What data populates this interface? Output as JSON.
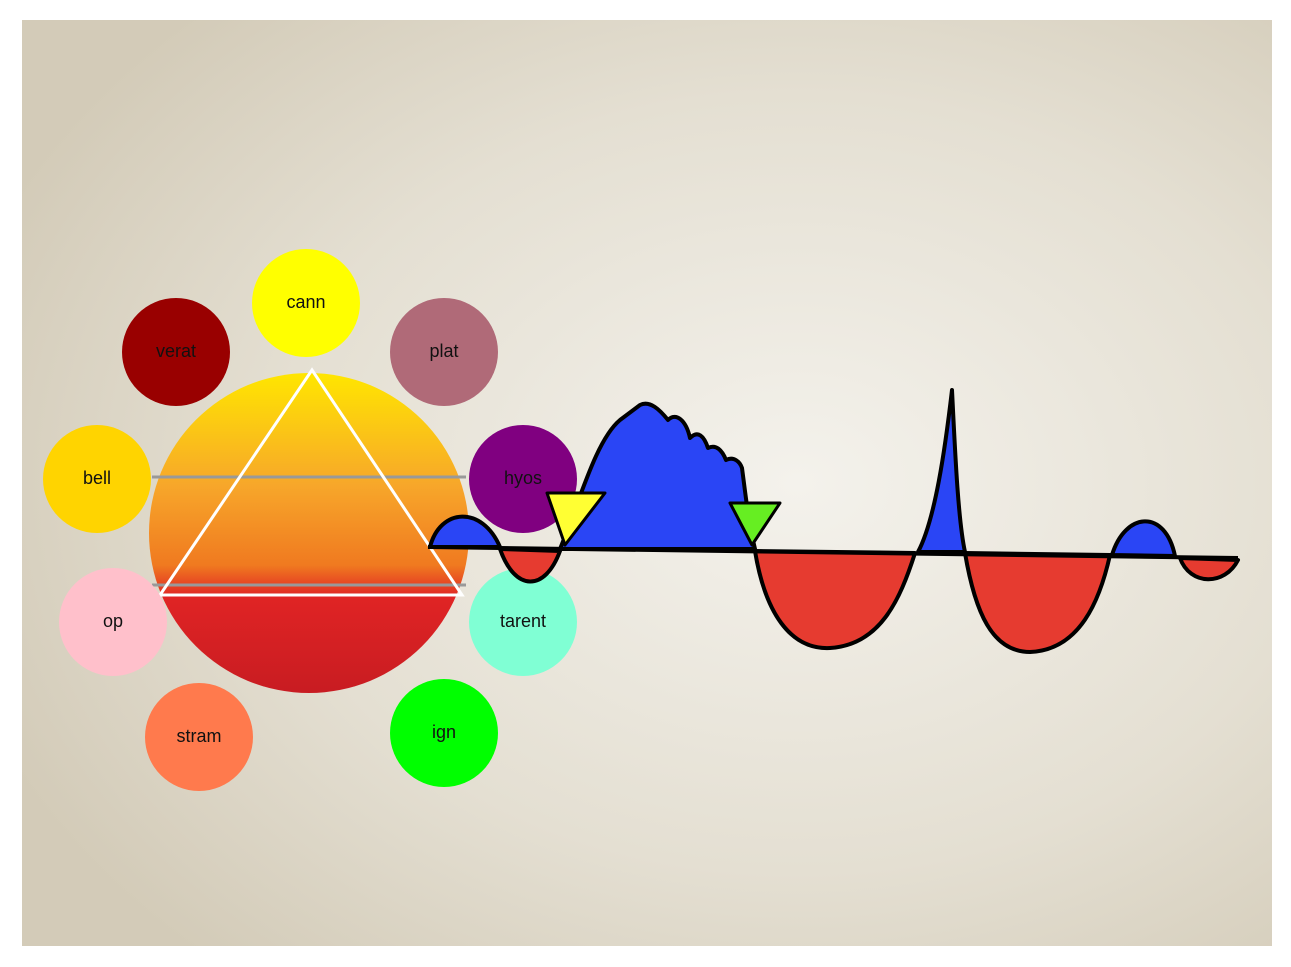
{
  "nodes": [
    {
      "label": "cann",
      "color": "#ffff00"
    },
    {
      "label": "verat",
      "color": "#990000"
    },
    {
      "label": "plat",
      "color": "#b06a78"
    },
    {
      "label": "bell",
      "color": "#ffd400"
    },
    {
      "label": "hyos",
      "color": "#800080"
    },
    {
      "label": "op",
      "color": "#ffc0cb"
    },
    {
      "label": "tarent",
      "color": "#80ffd4"
    },
    {
      "label": "stram",
      "color": "#ff7a4d"
    },
    {
      "label": "ign",
      "color": "#00ff00"
    }
  ]
}
